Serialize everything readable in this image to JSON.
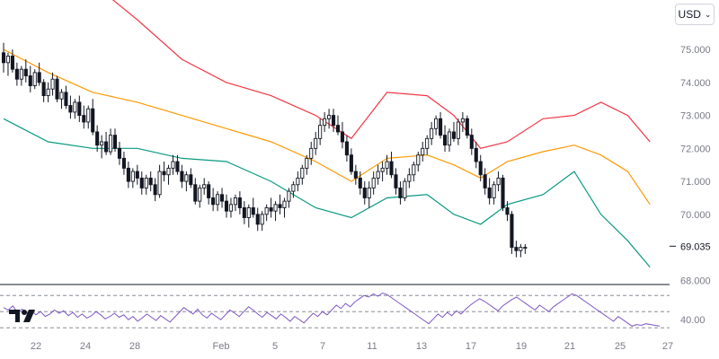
{
  "currency_selector": {
    "label": "USD",
    "icon": "chevron-down-icon"
  },
  "logo": {
    "name": "tradingview-logo"
  },
  "colors": {
    "upper_band": "#f23645",
    "middle_band": "#ff9800",
    "lower_band": "#089981",
    "candle": "#131722",
    "rsi_line": "#7e57c2",
    "price_label_bg": "#ffffff",
    "grid_dashed": "#787b86"
  },
  "chart_data": [
    {
      "type": "candlestick",
      "title": "",
      "y_ticks": [
        "75.000",
        "74.000",
        "73.000",
        "72.000",
        "71.000",
        "70.000",
        "68.000"
      ],
      "ylim": [
        67.9,
        76.5
      ],
      "last_price": "69.035",
      "x_ticks": [
        "22",
        "24",
        "28",
        "Feb",
        "5",
        "7",
        "11",
        "13",
        "17",
        "19",
        "21",
        "25",
        "27"
      ],
      "x_tick_index": [
        7,
        18,
        29,
        49,
        60,
        71,
        82,
        93,
        104,
        115,
        126,
        137,
        148
      ],
      "overlays": [
        {
          "name": "upper",
          "points": [
            [
              0,
              77.6
            ],
            [
              10,
              77.3
            ],
            [
              20,
              77.0
            ],
            [
              30,
              75.9
            ],
            [
              40,
              74.7
            ],
            [
              50,
              74.0
            ],
            [
              60,
              73.6
            ],
            [
              70,
              73.0
            ],
            [
              78,
              72.3
            ],
            [
              86,
              73.7
            ],
            [
              95,
              73.6
            ],
            [
              101,
              73.0
            ],
            [
              107,
              72.0
            ],
            [
              113,
              72.2
            ],
            [
              121,
              72.9
            ],
            [
              128,
              73.0
            ],
            [
              134,
              73.4
            ],
            [
              140,
              73.0
            ],
            [
              145,
              72.2
            ]
          ]
        },
        {
          "name": "middle",
          "points": [
            [
              0,
              75.0
            ],
            [
              10,
              74.3
            ],
            [
              20,
              73.7
            ],
            [
              30,
              73.4
            ],
            [
              40,
              73.0
            ],
            [
              50,
              72.6
            ],
            [
              60,
              72.2
            ],
            [
              70,
              71.6
            ],
            [
              78,
              71.0
            ],
            [
              86,
              71.7
            ],
            [
              95,
              71.8
            ],
            [
              101,
              71.5
            ],
            [
              107,
              71.1
            ],
            [
              113,
              71.6
            ],
            [
              121,
              71.9
            ],
            [
              128,
              72.1
            ],
            [
              134,
              71.8
            ],
            [
              140,
              71.3
            ],
            [
              145,
              70.3
            ]
          ]
        },
        {
          "name": "lower",
          "points": [
            [
              0,
              72.9
            ],
            [
              10,
              72.2
            ],
            [
              20,
              72.0
            ],
            [
              30,
              72.0
            ],
            [
              40,
              71.7
            ],
            [
              50,
              71.6
            ],
            [
              60,
              71.0
            ],
            [
              70,
              70.2
            ],
            [
              78,
              69.9
            ],
            [
              86,
              70.5
            ],
            [
              95,
              70.6
            ],
            [
              101,
              70.0
            ],
            [
              107,
              69.7
            ],
            [
              113,
              70.3
            ],
            [
              121,
              70.6
            ],
            [
              128,
              71.3
            ],
            [
              134,
              70.0
            ],
            [
              140,
              69.2
            ],
            [
              145,
              68.4
            ]
          ]
        }
      ],
      "candles": [
        [
          74.9,
          75.2,
          74.3,
          74.6
        ],
        [
          74.6,
          74.9,
          74.2,
          74.8
        ],
        [
          74.8,
          75.0,
          74.3,
          74.4
        ],
        [
          74.4,
          74.6,
          73.9,
          74.1
        ],
        [
          74.1,
          74.5,
          73.9,
          74.4
        ],
        [
          74.4,
          74.7,
          74.0,
          74.2
        ],
        [
          74.2,
          74.5,
          73.7,
          73.9
        ],
        [
          73.9,
          74.4,
          73.8,
          74.3
        ],
        [
          74.3,
          74.6,
          73.9,
          74.0
        ],
        [
          74.0,
          74.1,
          73.4,
          73.6
        ],
        [
          73.6,
          74.0,
          73.4,
          73.8
        ],
        [
          73.8,
          74.3,
          73.6,
          74.1
        ],
        [
          74.1,
          74.2,
          73.4,
          73.5
        ],
        [
          73.5,
          73.8,
          73.2,
          73.7
        ],
        [
          73.7,
          73.9,
          73.2,
          73.3
        ],
        [
          73.3,
          73.6,
          72.9,
          73.1
        ],
        [
          73.1,
          73.5,
          72.9,
          73.4
        ],
        [
          73.4,
          73.6,
          72.8,
          73.0
        ],
        [
          73.0,
          73.3,
          72.6,
          72.8
        ],
        [
          72.8,
          73.3,
          72.6,
          73.2
        ],
        [
          73.2,
          73.5,
          72.4,
          72.5
        ],
        [
          72.5,
          72.7,
          71.9,
          72.1
        ],
        [
          72.1,
          72.4,
          71.7,
          72.2
        ],
        [
          72.2,
          72.5,
          71.8,
          71.9
        ],
        [
          71.9,
          72.6,
          71.8,
          72.4
        ],
        [
          72.4,
          72.6,
          71.9,
          72.0
        ],
        [
          72.0,
          72.2,
          71.5,
          71.7
        ],
        [
          71.7,
          71.9,
          71.2,
          71.4
        ],
        [
          71.4,
          71.6,
          70.8,
          71.0
        ],
        [
          71.0,
          71.4,
          70.8,
          71.3
        ],
        [
          71.3,
          71.5,
          70.9,
          71.1
        ],
        [
          71.1,
          71.3,
          70.6,
          70.8
        ],
        [
          70.8,
          71.2,
          70.6,
          71.1
        ],
        [
          71.1,
          71.3,
          70.7,
          70.9
        ],
        [
          70.9,
          71.1,
          70.4,
          70.6
        ],
        [
          70.6,
          71.5,
          70.5,
          71.3
        ],
        [
          71.3,
          71.6,
          71.0,
          71.2
        ],
        [
          71.2,
          71.5,
          70.9,
          71.4
        ],
        [
          71.4,
          71.8,
          71.2,
          71.6
        ],
        [
          71.6,
          71.8,
          71.2,
          71.3
        ],
        [
          71.3,
          71.5,
          70.8,
          71.0
        ],
        [
          71.0,
          71.3,
          70.7,
          71.2
        ],
        [
          71.2,
          71.4,
          70.8,
          70.9
        ],
        [
          70.9,
          71.1,
          70.3,
          70.4
        ],
        [
          70.4,
          70.9,
          70.2,
          70.8
        ],
        [
          70.8,
          71.1,
          70.6,
          70.9
        ],
        [
          70.9,
          71.0,
          70.3,
          70.5
        ],
        [
          70.5,
          70.8,
          70.1,
          70.3
        ],
        [
          70.3,
          70.7,
          70.1,
          70.6
        ],
        [
          70.6,
          70.8,
          70.2,
          70.4
        ],
        [
          70.4,
          70.6,
          69.9,
          70.1
        ],
        [
          70.1,
          70.5,
          69.9,
          70.3
        ],
        [
          70.3,
          70.6,
          70.1,
          70.5
        ],
        [
          70.5,
          70.7,
          70.0,
          70.2
        ],
        [
          70.2,
          70.4,
          69.7,
          69.9
        ],
        [
          69.9,
          70.3,
          69.6,
          70.2
        ],
        [
          70.2,
          70.5,
          69.9,
          70.0
        ],
        [
          70.0,
          70.2,
          69.5,
          69.7
        ],
        [
          69.7,
          70.1,
          69.5,
          70.0
        ],
        [
          70.0,
          70.3,
          69.8,
          70.2
        ],
        [
          70.2,
          70.5,
          69.9,
          70.1
        ],
        [
          70.1,
          70.4,
          69.8,
          70.3
        ],
        [
          70.3,
          70.6,
          70.0,
          70.2
        ],
        [
          70.2,
          70.5,
          69.9,
          70.4
        ],
        [
          70.4,
          70.8,
          70.2,
          70.7
        ],
        [
          70.7,
          71.0,
          70.5,
          70.9
        ],
        [
          70.9,
          71.3,
          70.7,
          71.1
        ],
        [
          71.1,
          71.5,
          70.9,
          71.4
        ],
        [
          71.4,
          71.8,
          71.2,
          71.7
        ],
        [
          71.7,
          72.2,
          71.5,
          72.0
        ],
        [
          72.0,
          72.5,
          71.8,
          72.3
        ],
        [
          72.3,
          72.9,
          72.1,
          72.7
        ],
        [
          72.7,
          73.1,
          72.5,
          72.9
        ],
        [
          72.9,
          73.2,
          72.6,
          73.0
        ],
        [
          73.0,
          73.2,
          72.5,
          72.7
        ],
        [
          72.7,
          73.0,
          72.4,
          72.5
        ],
        [
          72.5,
          72.8,
          72.0,
          72.2
        ],
        [
          72.2,
          72.4,
          71.6,
          71.8
        ],
        [
          71.8,
          72.0,
          71.2,
          71.3
        ],
        [
          71.3,
          71.5,
          70.9,
          71.1
        ],
        [
          71.1,
          71.3,
          70.6,
          70.8
        ],
        [
          70.8,
          71.0,
          70.3,
          70.5
        ],
        [
          70.5,
          71.0,
          70.2,
          70.8
        ],
        [
          70.8,
          71.3,
          70.6,
          71.1
        ],
        [
          71.1,
          71.5,
          70.9,
          71.3
        ],
        [
          71.3,
          71.6,
          71.0,
          71.4
        ],
        [
          71.4,
          71.8,
          71.2,
          71.6
        ],
        [
          71.6,
          71.9,
          71.1,
          71.2
        ],
        [
          71.2,
          71.4,
          70.6,
          70.8
        ],
        [
          70.8,
          71.0,
          70.3,
          70.5
        ],
        [
          70.5,
          71.1,
          70.4,
          71.0
        ],
        [
          71.0,
          71.4,
          70.8,
          71.2
        ],
        [
          71.2,
          71.6,
          71.0,
          71.5
        ],
        [
          71.5,
          71.9,
          71.3,
          71.8
        ],
        [
          71.8,
          72.2,
          71.6,
          72.0
        ],
        [
          72.0,
          72.4,
          71.8,
          72.3
        ],
        [
          72.3,
          72.8,
          72.1,
          72.6
        ],
        [
          72.6,
          73.0,
          72.4,
          72.9
        ],
        [
          72.9,
          73.1,
          72.3,
          72.4
        ],
        [
          72.4,
          72.7,
          71.9,
          72.1
        ],
        [
          72.1,
          72.6,
          71.9,
          72.5
        ],
        [
          72.5,
          72.8,
          72.2,
          72.3
        ],
        [
          72.3,
          72.9,
          72.1,
          72.8
        ],
        [
          72.8,
          73.1,
          72.5,
          72.9
        ],
        [
          72.9,
          73.0,
          72.3,
          72.4
        ],
        [
          72.4,
          72.6,
          71.8,
          72.0
        ],
        [
          72.0,
          72.2,
          71.4,
          71.6
        ],
        [
          71.6,
          71.8,
          71.0,
          71.2
        ],
        [
          71.2,
          71.4,
          70.6,
          70.8
        ],
        [
          70.8,
          71.1,
          70.3,
          70.5
        ],
        [
          70.5,
          71.0,
          70.3,
          70.9
        ],
        [
          70.9,
          71.3,
          70.7,
          71.1
        ],
        [
          71.1,
          71.2,
          70.1,
          70.2
        ],
        [
          70.2,
          70.4,
          69.8,
          70.0
        ],
        [
          70.0,
          70.1,
          68.8,
          69.0
        ],
        [
          69.0,
          69.2,
          68.7,
          68.9
        ],
        [
          68.9,
          69.1,
          68.7,
          69.0
        ],
        [
          69.0,
          69.1,
          68.8,
          69.0
        ]
      ],
      "candle_x_start": 0,
      "candle_x_step": 1
    },
    {
      "type": "line",
      "title": "",
      "y_ticks": [
        "40.00"
      ],
      "ylim": [
        28,
        78
      ],
      "levels": [
        70,
        50,
        30
      ],
      "series": [
        {
          "values": [
            55,
            52,
            57,
            49,
            53,
            48,
            51,
            46,
            50,
            44,
            47,
            52,
            48,
            51,
            45,
            49,
            43,
            47,
            42,
            45,
            50,
            46,
            41,
            44,
            48,
            43,
            46,
            40,
            44,
            38,
            42,
            47,
            43,
            39,
            45,
            41,
            37,
            43,
            49,
            55,
            51,
            47,
            53,
            46,
            42,
            48,
            44,
            40,
            46,
            52,
            48,
            44,
            50,
            56,
            52,
            47,
            43,
            49,
            45,
            41,
            47,
            43,
            38,
            44,
            40,
            36,
            42,
            48,
            44,
            50,
            46,
            52,
            58,
            54,
            60,
            56,
            62,
            66,
            70,
            68,
            72,
            69,
            73,
            71,
            67,
            63,
            59,
            55,
            51,
            47,
            43,
            39,
            35,
            41,
            47,
            43,
            49,
            45,
            51,
            47,
            53,
            58,
            62,
            66,
            63,
            59,
            55,
            51,
            57,
            61,
            65,
            68,
            64,
            60,
            56,
            52,
            58,
            54,
            50,
            56,
            60,
            64,
            68,
            72,
            70,
            66,
            62,
            58,
            54,
            50,
            46,
            42,
            38,
            44,
            40,
            36,
            32,
            34,
            33,
            35,
            34,
            33,
            32
          ],
          "x_step": 1
        }
      ]
    }
  ]
}
